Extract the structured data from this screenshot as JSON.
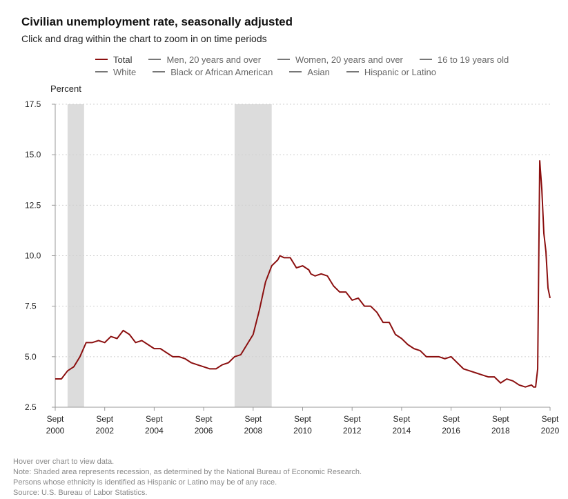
{
  "header": {
    "title": "Civilian unemployment rate, seasonally adjusted",
    "subtitle": "Click and drag within the chart to zoom in on time periods"
  },
  "legend": {
    "rows": [
      [
        "Total",
        "Men, 20 years and over",
        "Women, 20 years and over",
        "16 to 19 years old"
      ],
      [
        "White",
        "Black or African American",
        "Asian",
        "Hispanic or Latino"
      ]
    ],
    "active": "Total"
  },
  "colors": {
    "series": "#8b0f0f",
    "recession": "#dcdcdc",
    "inactive": "#777777",
    "grid": "#d0d0d0"
  },
  "footer": {
    "lines": [
      "Hover over chart to view data.",
      "Note: Shaded area represents recession, as determined by the National Bureau of Economic Research.",
      "Persons whose ethnicity is identified as Hispanic or Latino may be of any race.",
      "Source: U.S. Bureau of Labor Statistics."
    ]
  },
  "chart_data": {
    "type": "line",
    "title": "Civilian unemployment rate, seasonally adjusted",
    "ylabel": "Percent",
    "xlabel": "",
    "ylim": [
      2.5,
      17.5
    ],
    "yticks": [
      "2.5",
      "5.0",
      "7.5",
      "10.0",
      "12.5",
      "15.0",
      "17.5"
    ],
    "xlim": [
      "2000-09",
      "2020-09"
    ],
    "xticks": [
      {
        "month": "Sept",
        "year": "2000",
        "date": "2000-09"
      },
      {
        "month": "Sept",
        "year": "2002",
        "date": "2002-09"
      },
      {
        "month": "Sept",
        "year": "2004",
        "date": "2004-09"
      },
      {
        "month": "Sept",
        "year": "2006",
        "date": "2006-09"
      },
      {
        "month": "Sept",
        "year": "2008",
        "date": "2008-09"
      },
      {
        "month": "Sept",
        "year": "2010",
        "date": "2010-09"
      },
      {
        "month": "Sept",
        "year": "2012",
        "date": "2012-09"
      },
      {
        "month": "Sept",
        "year": "2014",
        "date": "2014-09"
      },
      {
        "month": "Sept",
        "year": "2016",
        "date": "2016-09"
      },
      {
        "month": "Sept",
        "year": "2018",
        "date": "2018-09"
      },
      {
        "month": "Sept",
        "year": "2020",
        "date": "2020-09"
      }
    ],
    "grid": "horizontal dotted",
    "legend_placement": "top",
    "recessions": [
      {
        "start": "2001-03",
        "end": "2001-11"
      },
      {
        "start": "2007-12",
        "end": "2009-06"
      }
    ],
    "series": [
      {
        "name": "Total",
        "points": [
          [
            "2000-09",
            3.9
          ],
          [
            "2000-12",
            3.9
          ],
          [
            "2001-03",
            4.3
          ],
          [
            "2001-06",
            4.5
          ],
          [
            "2001-09",
            5.0
          ],
          [
            "2001-12",
            5.7
          ],
          [
            "2002-03",
            5.7
          ],
          [
            "2002-06",
            5.8
          ],
          [
            "2002-09",
            5.7
          ],
          [
            "2002-12",
            6.0
          ],
          [
            "2003-03",
            5.9
          ],
          [
            "2003-06",
            6.3
          ],
          [
            "2003-09",
            6.1
          ],
          [
            "2003-12",
            5.7
          ],
          [
            "2004-03",
            5.8
          ],
          [
            "2004-06",
            5.6
          ],
          [
            "2004-09",
            5.4
          ],
          [
            "2004-12",
            5.4
          ],
          [
            "2005-03",
            5.2
          ],
          [
            "2005-06",
            5.0
          ],
          [
            "2005-09",
            5.0
          ],
          [
            "2005-12",
            4.9
          ],
          [
            "2006-03",
            4.7
          ],
          [
            "2006-06",
            4.6
          ],
          [
            "2006-09",
            4.5
          ],
          [
            "2006-12",
            4.4
          ],
          [
            "2007-03",
            4.4
          ],
          [
            "2007-06",
            4.6
          ],
          [
            "2007-09",
            4.7
          ],
          [
            "2007-12",
            5.0
          ],
          [
            "2008-03",
            5.1
          ],
          [
            "2008-06",
            5.6
          ],
          [
            "2008-09",
            6.1
          ],
          [
            "2008-12",
            7.3
          ],
          [
            "2009-03",
            8.7
          ],
          [
            "2009-06",
            9.5
          ],
          [
            "2009-09",
            9.8
          ],
          [
            "2009-10",
            10.0
          ],
          [
            "2009-12",
            9.9
          ],
          [
            "2010-03",
            9.9
          ],
          [
            "2010-06",
            9.4
          ],
          [
            "2010-09",
            9.5
          ],
          [
            "2010-12",
            9.3
          ],
          [
            "2011-01",
            9.1
          ],
          [
            "2011-03",
            9.0
          ],
          [
            "2011-06",
            9.1
          ],
          [
            "2011-09",
            9.0
          ],
          [
            "2011-12",
            8.5
          ],
          [
            "2012-03",
            8.2
          ],
          [
            "2012-06",
            8.2
          ],
          [
            "2012-09",
            7.8
          ],
          [
            "2012-12",
            7.9
          ],
          [
            "2013-03",
            7.5
          ],
          [
            "2013-06",
            7.5
          ],
          [
            "2013-09",
            7.2
          ],
          [
            "2013-12",
            6.7
          ],
          [
            "2014-03",
            6.7
          ],
          [
            "2014-06",
            6.1
          ],
          [
            "2014-09",
            5.9
          ],
          [
            "2014-12",
            5.6
          ],
          [
            "2015-03",
            5.4
          ],
          [
            "2015-06",
            5.3
          ],
          [
            "2015-09",
            5.0
          ],
          [
            "2015-12",
            5.0
          ],
          [
            "2016-03",
            5.0
          ],
          [
            "2016-06",
            4.9
          ],
          [
            "2016-09",
            5.0
          ],
          [
            "2016-12",
            4.7
          ],
          [
            "2017-03",
            4.4
          ],
          [
            "2017-06",
            4.3
          ],
          [
            "2017-09",
            4.2
          ],
          [
            "2017-12",
            4.1
          ],
          [
            "2018-03",
            4.0
          ],
          [
            "2018-06",
            4.0
          ],
          [
            "2018-09",
            3.7
          ],
          [
            "2018-12",
            3.9
          ],
          [
            "2019-03",
            3.8
          ],
          [
            "2019-06",
            3.6
          ],
          [
            "2019-09",
            3.5
          ],
          [
            "2019-12",
            3.6
          ],
          [
            "2020-01",
            3.5
          ],
          [
            "2020-02",
            3.5
          ],
          [
            "2020-03",
            4.4
          ],
          [
            "2020-04",
            14.7
          ],
          [
            "2020-05",
            13.3
          ],
          [
            "2020-06",
            11.1
          ],
          [
            "2020-07",
            10.2
          ],
          [
            "2020-08",
            8.4
          ],
          [
            "2020-09",
            7.9
          ]
        ]
      }
    ]
  }
}
